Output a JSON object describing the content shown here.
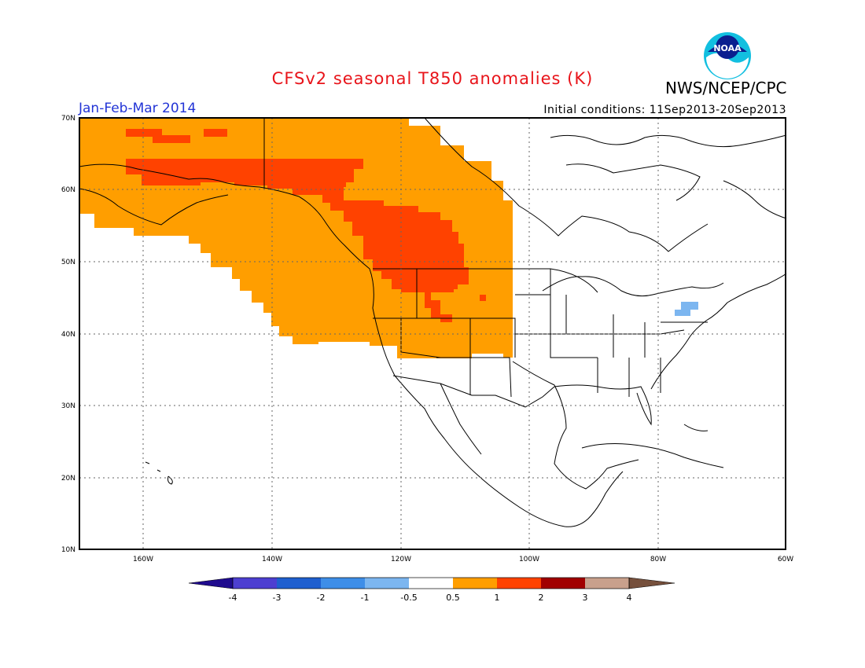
{
  "header": {
    "title": "CFSv2 seasonal T850 anomalies (K)",
    "season": "Jan-Feb-Mar 2014",
    "initial_conditions": "Initial conditions: 11Sep2013-20Sep2013",
    "agency": "NWS/NCEP/CPC",
    "logo_text": "NOAA"
  },
  "map": {
    "lat_labels": [
      "70N",
      "60N",
      "50N",
      "40N",
      "30N",
      "20N",
      "10N"
    ],
    "lon_labels": [
      "160W",
      "140W",
      "120W",
      "100W",
      "80W",
      "60W"
    ],
    "lat_range": [
      10,
      70
    ],
    "lon_range": [
      -171,
      -60
    ]
  },
  "colorbar": {
    "labels": [
      "-4",
      "-3",
      "-2",
      "-1",
      "-0.5",
      "0.5",
      "1",
      "2",
      "3",
      "4"
    ],
    "colors": [
      "#1f0b8e",
      "#4d3fd1",
      "#1f5fcf",
      "#3e8ee8",
      "#7cb6f0",
      "#ffffff",
      "#ff9e00",
      "#ff4200",
      "#a10000",
      "#c8a08c",
      "#76503c"
    ]
  },
  "colors": {
    "anomaly_0_5_to_1": "#ff9e00",
    "anomaly_1_to_2": "#ff4200",
    "anomaly_neg_1_to_neg_0_5": "#7cb6f0",
    "title": "#e8141a",
    "season": "#2234d6"
  }
}
